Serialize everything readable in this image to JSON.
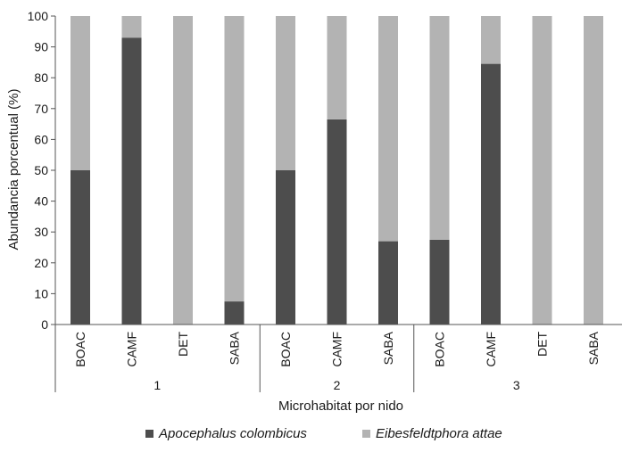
{
  "chart_data": {
    "type": "bar",
    "stacked": true,
    "ylabel": "Abundancia porcentual (%)",
    "xlabel": "Microhabitat por nido",
    "ylim": [
      0,
      100
    ],
    "yticks": [
      0,
      10,
      20,
      30,
      40,
      50,
      60,
      70,
      80,
      90,
      100
    ],
    "groups": [
      {
        "label": "1",
        "categories": [
          "BOAC",
          "CAMF",
          "DET",
          "SABA"
        ]
      },
      {
        "label": "2",
        "categories": [
          "BOAC",
          "CAMF",
          "SABA"
        ]
      },
      {
        "label": "3",
        "categories": [
          "BOAC",
          "CAMF",
          "DET",
          "SABA"
        ]
      }
    ],
    "categories": [
      "BOAC",
      "CAMF",
      "DET",
      "SABA",
      "BOAC",
      "CAMF",
      "SABA",
      "BOAC",
      "CAMF",
      "DET",
      "SABA"
    ],
    "series": [
      {
        "name": "Apocephalus colombicus",
        "color": "#4d4d4d",
        "values": [
          50,
          93,
          0,
          7.5,
          50,
          66.5,
          27,
          27.5,
          84.5,
          0,
          0
        ]
      },
      {
        "name": "Eibesfeldtphora attae",
        "color": "#b3b3b3",
        "values": [
          50,
          7,
          100,
          92.5,
          50,
          33.5,
          73,
          72.5,
          15.5,
          100,
          100
        ]
      }
    ],
    "legend_position": "bottom",
    "grid": false
  }
}
